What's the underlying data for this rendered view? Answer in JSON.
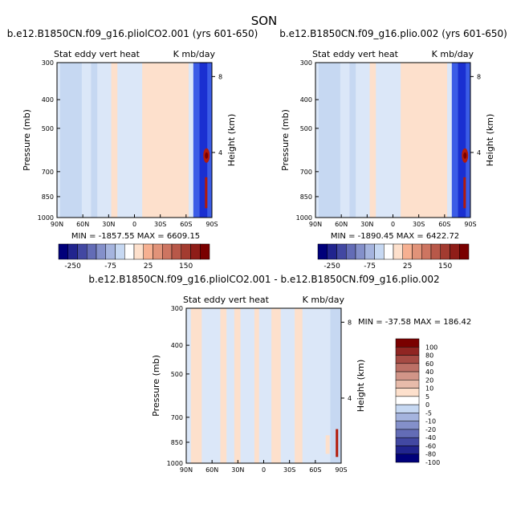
{
  "figure": {
    "title": "SON"
  },
  "chart_data": [
    {
      "type": "heatmap",
      "title": "b.e12.B1850CN.f09_g16.pliolCO2.001 (yrs 601-650)",
      "subtitle_left": "Stat eddy vert heat",
      "subtitle_right": "K mb/day",
      "ylabel": "Pressure (mb)",
      "ylabel_right": "Height (km)",
      "x_ticks": [
        "90N",
        "60N",
        "30N",
        "0",
        "30S",
        "60S",
        "90S"
      ],
      "y_ticks": [
        "300",
        "400",
        "500",
        "700",
        "850",
        "1000"
      ],
      "y_right_ticks": [
        "8",
        "4"
      ],
      "xlim": [
        90,
        -90
      ],
      "ylim": [
        1000,
        300
      ],
      "stats": "MIN = -1857.55   MAX = 6609.15",
      "colorbar_orientation": "horizontal",
      "colorbar_labels": [
        "-250",
        "-75",
        "25",
        "150"
      ]
    },
    {
      "type": "heatmap",
      "title": "b.e12.B1850CN.f09_g16.plio.002 (yrs 601-650)",
      "subtitle_left": "Stat eddy vert heat",
      "subtitle_right": "K mb/day",
      "ylabel": "Pressure (mb)",
      "ylabel_right": "Height (km)",
      "x_ticks": [
        "90N",
        "60N",
        "30N",
        "0",
        "30S",
        "60S",
        "90S"
      ],
      "y_ticks": [
        "300",
        "400",
        "500",
        "700",
        "850",
        "1000"
      ],
      "y_right_ticks": [
        "8",
        "4"
      ],
      "xlim": [
        90,
        -90
      ],
      "ylim": [
        1000,
        300
      ],
      "stats": "MIN = -1890.45   MAX = 6422.72",
      "colorbar_orientation": "horizontal",
      "colorbar_labels": [
        "-250",
        "-75",
        "25",
        "150"
      ]
    },
    {
      "type": "heatmap",
      "title": "b.e12.B1850CN.f09_g16.pliolCO2.001 - b.e12.B1850CN.f09_g16.plio.002",
      "subtitle_left": "Stat eddy vert heat",
      "subtitle_right": "K mb/day",
      "ylabel": "Pressure (mb)",
      "ylabel_right": "Height (km)",
      "x_ticks": [
        "90N",
        "60N",
        "30N",
        "0",
        "30S",
        "60S",
        "90S"
      ],
      "y_ticks": [
        "300",
        "400",
        "500",
        "700",
        "850",
        "1000"
      ],
      "y_right_ticks": [
        "8",
        "4"
      ],
      "xlim": [
        90,
        -90
      ],
      "ylim": [
        1000,
        300
      ],
      "stats": "MIN = -37.58   MAX = 186.42",
      "colorbar_orientation": "vertical",
      "colorbar_labels": [
        "100",
        "80",
        "60",
        "40",
        "20",
        "10",
        "5",
        "0",
        "-5",
        "-10",
        "-20",
        "-40",
        "-60",
        "-80",
        "-100"
      ]
    }
  ],
  "colors": {
    "pos_2": "#fde0cc",
    "neg_1": "#dbe7f8",
    "neg_2": "#c6d8f2",
    "neg_deep": "#1a2fd1",
    "neg_mid": "#3b5ce6",
    "pos_deep": "#b31a0a",
    "pos_max": "#7a0000",
    "divider": "#ffffff"
  }
}
